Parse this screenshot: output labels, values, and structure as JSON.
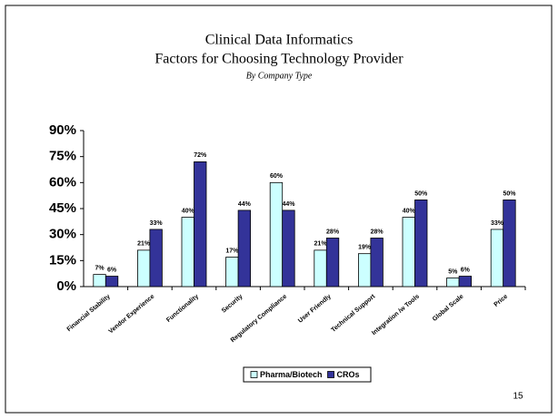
{
  "chart_data": {
    "type": "bar",
    "title": "Clinical Data Informatics",
    "subtitle": "Factors for Choosing Technology Provider",
    "note": "By Company Type",
    "categories": [
      "Financial Stability",
      "Vendor Experience",
      "Functionality",
      "Security",
      "Regulatory Compliance",
      "User Friendly",
      "Technical Support",
      "Integration /w Tools",
      "Global Scale",
      "Price"
    ],
    "series": [
      {
        "name": "Pharma/Biotech",
        "color": "#ccffff",
        "values": [
          7,
          21,
          40,
          17,
          60,
          21,
          19,
          40,
          5,
          33
        ],
        "value_labels": [
          "7%",
          "21%",
          "40%",
          "17%",
          "60%",
          "21%",
          "19%",
          "40%",
          "5%",
          "33%"
        ]
      },
      {
        "name": "CROs",
        "color": "#333399",
        "values": [
          6,
          33,
          72,
          44,
          44,
          28,
          28,
          50,
          6,
          50
        ],
        "value_labels": [
          "6%",
          "33%",
          "72%",
          "44%",
          "44%",
          "28%",
          "28%",
          "50%",
          "6%",
          "50%"
        ]
      }
    ],
    "ylim": [
      0,
      90
    ],
    "yticks": [
      {
        "value": 0,
        "label": "0%"
      },
      {
        "value": 15,
        "label": "15%"
      },
      {
        "value": 30,
        "label": "30%"
      },
      {
        "value": 45,
        "label": "45%"
      },
      {
        "value": 60,
        "label": "60%"
      },
      {
        "value": 75,
        "label": "75%"
      },
      {
        "value": 90,
        "label": "90%"
      }
    ],
    "grid": false,
    "legend": "bottom",
    "page_number": "15"
  }
}
